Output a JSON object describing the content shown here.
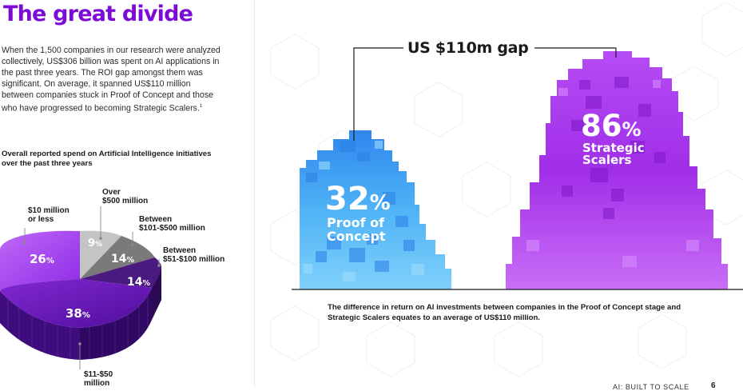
{
  "title": "The great divide",
  "intro": "When the 1,500 companies in our research were analyzed collectively, US$306 billion was spent on AI applications in the past three years. The ROI gap amongst them was significant. On average, it spanned US$110 million between companies stuck in Proof of Concept and those who have progressed to becoming Strategic Scalers.",
  "intro_footnote": "1",
  "chart_subtitle": "Overall reported spend on Artificial Intelligence initiatives over the past three years",
  "chart_data": [
    {
      "type": "pie",
      "title": "Overall reported spend on Artificial Intelligence initiatives over the past three years",
      "categories": [
        "$10 million or less",
        "Over $500 million",
        "Between $101-$500 million",
        "Between $51-$100 million",
        "$11-$50 million"
      ],
      "values": [
        26,
        9,
        14,
        14,
        38
      ],
      "unit": "%",
      "colors": [
        "#a63ff3",
        "#bdbdbd",
        "#787878",
        "#4b1a80",
        "#6e1bbd"
      ]
    },
    {
      "type": "bar",
      "categories": [
        "Proof of Concept",
        "Strategic Scalers"
      ],
      "values": [
        32,
        86
      ],
      "unit": "%",
      "annotation": "US $110m gap",
      "colors": [
        "#4eb5f5",
        "#a62ee8"
      ]
    }
  ],
  "pie_labels": {
    "le10": [
      "$10 million",
      "or less"
    ],
    "over500": [
      "Over",
      "$500 million"
    ],
    "b101": [
      "Between",
      "$101-$500 million"
    ],
    "b51": [
      "Between",
      "$51-$100 million"
    ],
    "b11": [
      "$11-$50",
      "million"
    ]
  },
  "pie_pct": {
    "le10": "26",
    "over500": "9",
    "b101": "14",
    "b51": "14",
    "b11": "38",
    "sign": "%"
  },
  "bars": {
    "gap": "US $110m gap",
    "poc_value": "32",
    "poc_label": [
      "Proof of",
      "Concept"
    ],
    "ss_value": "86",
    "ss_label": [
      "Strategic",
      "Scalers"
    ],
    "sign": "%"
  },
  "caption": "The difference in return on AI investments between companies in the Proof of Concept stage and Strategic Scalers equates to an average of US$110 million.",
  "footer": {
    "label": "AI: BUILT TO SCALE",
    "page": "6"
  }
}
